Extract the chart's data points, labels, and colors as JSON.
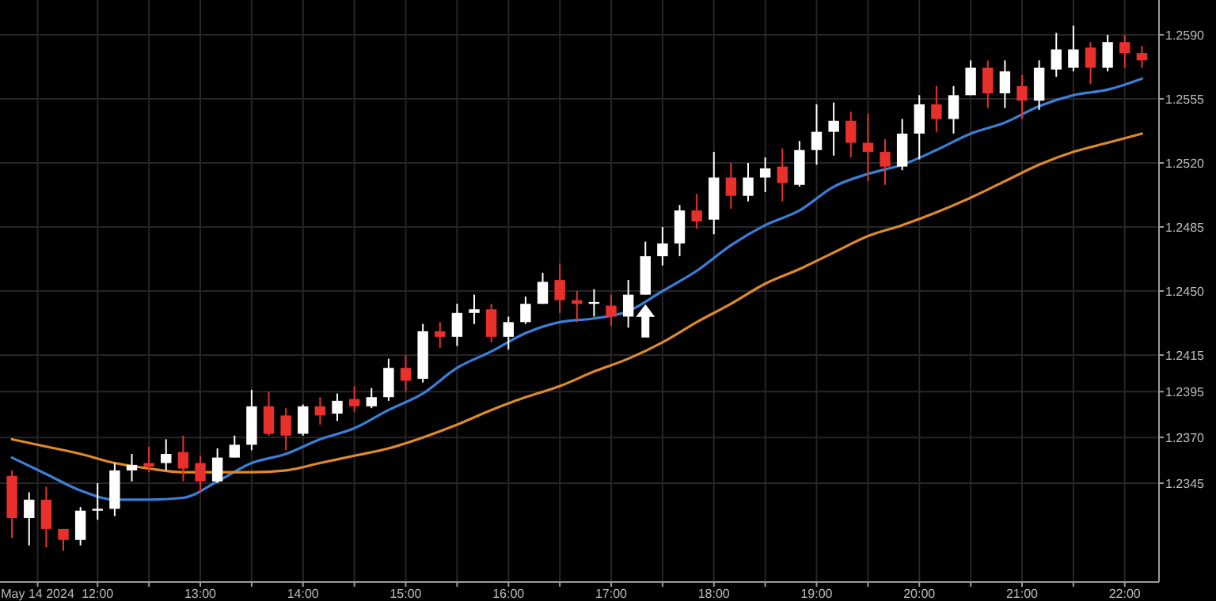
{
  "chart_data": {
    "type": "candlestick",
    "x": [
      "2024-05-14T11:10",
      "2024-05-14T11:20",
      "2024-05-14T11:30",
      "2024-05-14T11:40",
      "2024-05-14T11:50",
      "2024-05-14T12:00",
      "2024-05-14T12:10",
      "2024-05-14T12:20",
      "2024-05-14T12:30",
      "2024-05-14T12:40",
      "2024-05-14T12:50",
      "2024-05-14T13:00",
      "2024-05-14T13:10",
      "2024-05-14T13:20",
      "2024-05-14T13:30",
      "2024-05-14T13:40",
      "2024-05-14T13:50",
      "2024-05-14T14:00",
      "2024-05-14T14:10",
      "2024-05-14T14:20",
      "2024-05-14T14:30",
      "2024-05-14T14:40",
      "2024-05-14T14:50",
      "2024-05-14T15:00",
      "2024-05-14T15:10",
      "2024-05-14T15:20",
      "2024-05-14T15:30",
      "2024-05-14T15:40",
      "2024-05-14T15:50",
      "2024-05-14T16:00",
      "2024-05-14T16:10",
      "2024-05-14T16:20",
      "2024-05-14T16:30",
      "2024-05-14T16:40",
      "2024-05-14T16:50",
      "2024-05-14T17:00",
      "2024-05-14T17:10",
      "2024-05-14T17:20",
      "2024-05-14T17:30",
      "2024-05-14T17:40",
      "2024-05-14T17:50",
      "2024-05-14T18:00",
      "2024-05-14T18:10",
      "2024-05-14T18:20",
      "2024-05-14T18:30",
      "2024-05-14T18:40",
      "2024-05-14T18:50",
      "2024-05-14T19:00",
      "2024-05-14T19:10",
      "2024-05-14T19:20",
      "2024-05-14T19:30",
      "2024-05-14T19:40",
      "2024-05-14T19:50",
      "2024-05-14T20:00",
      "2024-05-14T20:10",
      "2024-05-14T20:20",
      "2024-05-14T20:30",
      "2024-05-14T20:40",
      "2024-05-14T20:50",
      "2024-05-14T21:00",
      "2024-05-14T21:10",
      "2024-05-14T21:20",
      "2024-05-14T21:30",
      "2024-05-14T21:40",
      "2024-05-14T21:50",
      "2024-05-14T22:00",
      "2024-05-14T22:10"
    ],
    "ohlc": [
      [
        1.2349,
        1.2352,
        1.2315,
        1.2326
      ],
      [
        1.2326,
        1.234,
        1.2311,
        1.2336
      ],
      [
        1.2336,
        1.2343,
        1.231,
        1.232
      ],
      [
        1.232,
        1.232,
        1.2308,
        1.2314
      ],
      [
        1.2314,
        1.2332,
        1.2311,
        1.233
      ],
      [
        1.233,
        1.2345,
        1.2325,
        1.2331
      ],
      [
        1.2331,
        1.2356,
        1.2327,
        1.2352
      ],
      [
        1.2352,
        1.2361,
        1.2346,
        1.2355
      ],
      [
        1.2356,
        1.2365,
        1.2351,
        1.2354
      ],
      [
        1.2356,
        1.2369,
        1.2352,
        1.2361
      ],
      [
        1.2362,
        1.2371,
        1.2346,
        1.2353
      ],
      [
        1.2356,
        1.236,
        1.234,
        1.2346
      ],
      [
        1.2346,
        1.2364,
        1.2345,
        1.2359
      ],
      [
        1.2359,
        1.2371,
        1.2359,
        1.2366
      ],
      [
        1.2366,
        1.2396,
        1.2363,
        1.2387
      ],
      [
        1.2387,
        1.2395,
        1.2371,
        1.2372
      ],
      [
        1.2382,
        1.2386,
        1.2363,
        1.2371
      ],
      [
        1.2372,
        1.2388,
        1.2371,
        1.2387
      ],
      [
        1.2387,
        1.2392,
        1.2377,
        1.2382
      ],
      [
        1.2383,
        1.2394,
        1.2379,
        1.239
      ],
      [
        1.2391,
        1.2398,
        1.2384,
        1.2387
      ],
      [
        1.2387,
        1.2397,
        1.2386,
        1.2392
      ],
      [
        1.2392,
        1.2413,
        1.239,
        1.2408
      ],
      [
        1.2408,
        1.2415,
        1.2395,
        1.2401
      ],
      [
        1.2402,
        1.2432,
        1.24,
        1.2428
      ],
      [
        1.2428,
        1.2433,
        1.2419,
        1.2425
      ],
      [
        1.2425,
        1.2443,
        1.242,
        1.2438
      ],
      [
        1.2438,
        1.2448,
        1.2432,
        1.244
      ],
      [
        1.244,
        1.2443,
        1.2422,
        1.2425
      ],
      [
        1.2425,
        1.2436,
        1.2418,
        1.2433
      ],
      [
        1.2433,
        1.2447,
        1.2432,
        1.2443
      ],
      [
        1.2443,
        1.246,
        1.2443,
        1.2455
      ],
      [
        1.2456,
        1.2465,
        1.2438,
        1.2445
      ],
      [
        1.2445,
        1.245,
        1.2433,
        1.2443
      ],
      [
        1.2443,
        1.2451,
        1.2436,
        1.2444
      ],
      [
        1.2442,
        1.2448,
        1.2431,
        1.2436
      ],
      [
        1.2436,
        1.2456,
        1.243,
        1.2448
      ],
      [
        1.2448,
        1.2477,
        1.2448,
        1.2469
      ],
      [
        1.2469,
        1.2485,
        1.2464,
        1.2476
      ],
      [
        1.2476,
        1.2497,
        1.2469,
        1.2494
      ],
      [
        1.2494,
        1.2503,
        1.2484,
        1.2488
      ],
      [
        1.2489,
        1.2526,
        1.2481,
        1.2512
      ],
      [
        1.2512,
        1.252,
        1.2495,
        1.2502
      ],
      [
        1.2502,
        1.252,
        1.2499,
        1.2512
      ],
      [
        1.2512,
        1.2523,
        1.2504,
        1.2517
      ],
      [
        1.2518,
        1.2528,
        1.2499,
        1.2509
      ],
      [
        1.2508,
        1.2532,
        1.2507,
        1.2527
      ],
      [
        1.2527,
        1.2552,
        1.2519,
        1.2537
      ],
      [
        1.2537,
        1.2553,
        1.2524,
        1.2543
      ],
      [
        1.2543,
        1.2548,
        1.2523,
        1.2531
      ],
      [
        1.2531,
        1.2547,
        1.251,
        1.2526
      ],
      [
        1.2526,
        1.2533,
        1.2508,
        1.2518
      ],
      [
        1.2518,
        1.2544,
        1.2516,
        1.2536
      ],
      [
        1.2536,
        1.2557,
        1.2522,
        1.2552
      ],
      [
        1.2552,
        1.2562,
        1.2537,
        1.2544
      ],
      [
        1.2544,
        1.2562,
        1.2536,
        1.2557
      ],
      [
        1.2557,
        1.2576,
        1.2557,
        1.2572
      ],
      [
        1.2572,
        1.2576,
        1.255,
        1.2558
      ],
      [
        1.2558,
        1.2576,
        1.255,
        1.257
      ],
      [
        1.2562,
        1.2568,
        1.2544,
        1.2554
      ],
      [
        1.2554,
        1.2576,
        1.2549,
        1.2572
      ],
      [
        1.2571,
        1.2591,
        1.2567,
        1.2582
      ],
      [
        1.2572,
        1.2595,
        1.257,
        1.2582
      ],
      [
        1.2583,
        1.2586,
        1.2563,
        1.2572
      ],
      [
        1.2572,
        1.259,
        1.257,
        1.2586
      ],
      [
        1.2586,
        1.259,
        1.2572,
        1.258
      ],
      [
        1.258,
        1.2584,
        1.2572,
        1.2576
      ]
    ],
    "colors": [
      "#e8302c",
      "#ffffff",
      "#e8302c",
      "#e8302c",
      "#ffffff",
      "#ffffff",
      "#ffffff",
      "#ffffff",
      "#e8302c",
      "#ffffff",
      "#e8302c",
      "#e8302c",
      "#ffffff",
      "#ffffff",
      "#ffffff",
      "#e8302c",
      "#e8302c",
      "#ffffff",
      "#e8302c",
      "#ffffff",
      "#e8302c",
      "#ffffff",
      "#ffffff",
      "#e8302c",
      "#ffffff",
      "#e8302c",
      "#ffffff",
      "#ffffff",
      "#e8302c",
      "#ffffff",
      "#ffffff",
      "#ffffff",
      "#e8302c",
      "#e8302c",
      "#ffffff",
      "#e8302c",
      "#ffffff",
      "#ffffff",
      "#ffffff",
      "#ffffff",
      "#e8302c",
      "#ffffff",
      "#e8302c",
      "#ffffff",
      "#ffffff",
      "#e8302c",
      "#ffffff",
      "#ffffff",
      "#ffffff",
      "#e8302c",
      "#e8302c",
      "#e8302c",
      "#ffffff",
      "#ffffff",
      "#e8302c",
      "#ffffff",
      "#ffffff",
      "#e8302c",
      "#ffffff",
      "#e8302c",
      "#ffffff",
      "#ffffff",
      "#ffffff",
      "#e8302c",
      "#ffffff",
      "#e8302c",
      "#e8302c"
    ],
    "series": [
      {
        "type": "line",
        "color": "#3b7fd9",
        "x": [
          "2024-05-14T11:10",
          "2024-05-14T11:30",
          "2024-05-14T11:50",
          "2024-05-14T12:10",
          "2024-05-14T12:30",
          "2024-05-14T12:50",
          "2024-05-14T13:10",
          "2024-05-14T13:30",
          "2024-05-14T13:50",
          "2024-05-14T14:10",
          "2024-05-14T14:30",
          "2024-05-14T14:50",
          "2024-05-14T15:10",
          "2024-05-14T15:30",
          "2024-05-14T15:50",
          "2024-05-14T16:10",
          "2024-05-14T16:30",
          "2024-05-14T16:50",
          "2024-05-14T17:10",
          "2024-05-14T17:30",
          "2024-05-14T17:50",
          "2024-05-14T18:10",
          "2024-05-14T18:30",
          "2024-05-14T18:50",
          "2024-05-14T19:10",
          "2024-05-14T19:30",
          "2024-05-14T19:50",
          "2024-05-14T20:10",
          "2024-05-14T20:30",
          "2024-05-14T20:50",
          "2024-05-14T21:10",
          "2024-05-14T21:30",
          "2024-05-14T21:50",
          "2024-05-14T22:10"
        ],
        "values": [
          1.2359,
          1.235,
          1.2341,
          1.2336,
          1.2336,
          1.2337,
          1.2346,
          1.2356,
          1.2361,
          1.2369,
          1.2375,
          1.2385,
          1.2394,
          1.2408,
          1.2417,
          1.2427,
          1.2433,
          1.2435,
          1.2439,
          1.245,
          1.2461,
          1.2475,
          1.2486,
          1.2494,
          1.2507,
          1.2514,
          1.2519,
          1.2527,
          1.2536,
          1.2542,
          1.2551,
          1.2557,
          1.256,
          1.2566
        ]
      },
      {
        "type": "line",
        "color": "#e0892b",
        "x": [
          "2024-05-14T11:10",
          "2024-05-14T11:30",
          "2024-05-14T11:50",
          "2024-05-14T12:10",
          "2024-05-14T12:30",
          "2024-05-14T12:50",
          "2024-05-14T13:10",
          "2024-05-14T13:30",
          "2024-05-14T13:50",
          "2024-05-14T14:10",
          "2024-05-14T14:30",
          "2024-05-14T14:50",
          "2024-05-14T15:10",
          "2024-05-14T15:30",
          "2024-05-14T15:50",
          "2024-05-14T16:10",
          "2024-05-14T16:30",
          "2024-05-14T16:50",
          "2024-05-14T17:10",
          "2024-05-14T17:30",
          "2024-05-14T17:50",
          "2024-05-14T18:10",
          "2024-05-14T18:30",
          "2024-05-14T18:50",
          "2024-05-14T19:10",
          "2024-05-14T19:30",
          "2024-05-14T19:50",
          "2024-05-14T20:10",
          "2024-05-14T20:30",
          "2024-05-14T20:50",
          "2024-05-14T21:10",
          "2024-05-14T21:30",
          "2024-05-14T21:50",
          "2024-05-14T22:10"
        ],
        "values": [
          1.2369,
          1.2365,
          1.2361,
          1.2356,
          1.2353,
          1.2351,
          1.2351,
          1.2351,
          1.2352,
          1.2356,
          1.236,
          1.2364,
          1.237,
          1.2377,
          1.2385,
          1.2392,
          1.2398,
          1.2406,
          1.2413,
          1.2422,
          1.2433,
          1.2443,
          1.2454,
          1.2462,
          1.2471,
          1.248,
          1.2486,
          1.2493,
          1.2501,
          1.251,
          1.2519,
          1.2526,
          1.2531,
          1.2536
        ]
      }
    ],
    "xlim": [
      "2024-05-14T11:03",
      "2024-05-14T22:20"
    ],
    "xticks": [
      {
        "value": "2024-05-14T11:25",
        "label": "May 14 2024"
      },
      {
        "value": "2024-05-14T12:00",
        "label": "12:00"
      },
      {
        "value": "2024-05-14T12:30",
        "label": null
      },
      {
        "value": "2024-05-14T13:00",
        "label": "13:00"
      },
      {
        "value": "2024-05-14T13:30",
        "label": null
      },
      {
        "value": "2024-05-14T14:00",
        "label": "14:00"
      },
      {
        "value": "2024-05-14T14:30",
        "label": null
      },
      {
        "value": "2024-05-14T15:00",
        "label": "15:00"
      },
      {
        "value": "2024-05-14T15:30",
        "label": null
      },
      {
        "value": "2024-05-14T16:00",
        "label": "16:00"
      },
      {
        "value": "2024-05-14T16:30",
        "label": null
      },
      {
        "value": "2024-05-14T17:00",
        "label": "17:00"
      },
      {
        "value": "2024-05-14T17:30",
        "label": null
      },
      {
        "value": "2024-05-14T18:00",
        "label": "18:00"
      },
      {
        "value": "2024-05-14T18:30",
        "label": null
      },
      {
        "value": "2024-05-14T19:00",
        "label": "19:00"
      },
      {
        "value": "2024-05-14T19:30",
        "label": null
      },
      {
        "value": "2024-05-14T20:00",
        "label": "20:00"
      },
      {
        "value": "2024-05-14T20:30",
        "label": null
      },
      {
        "value": "2024-05-14T21:00",
        "label": "21:00"
      },
      {
        "value": "2024-05-14T21:30",
        "label": null
      },
      {
        "value": "2024-05-14T22:00",
        "label": "22:00"
      }
    ],
    "ylim": [
      1.2291,
      1.2609
    ],
    "yticks": [
      1.2345,
      {
        "value": 1.237,
        "label": "1.2370"
      },
      1.2395,
      1.2415,
      {
        "value": 1.245,
        "label": "1.2450"
      },
      1.2485,
      {
        "value": 1.252,
        "label": "1.2520"
      },
      1.2555,
      {
        "value": 1.259,
        "label": "1.2590"
      }
    ],
    "grid": true
  }
}
